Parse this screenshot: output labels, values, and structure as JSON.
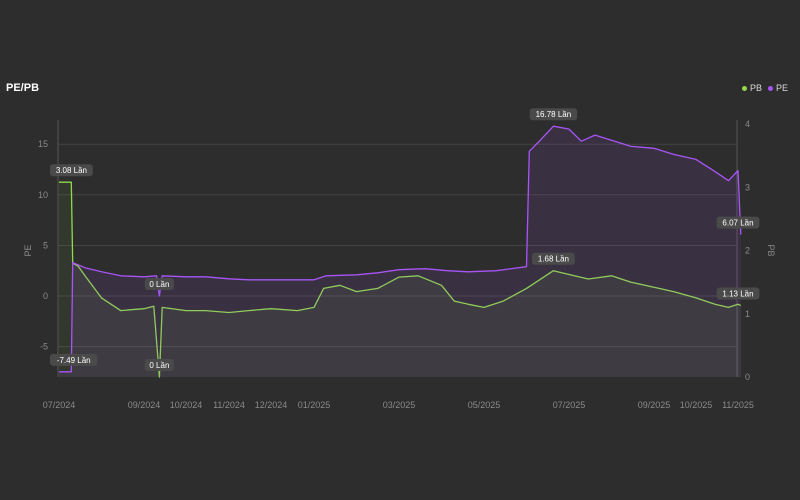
{
  "header": {
    "title": "PE/PB"
  },
  "chart_data": {
    "type": "line",
    "title": "PE/PB",
    "legend": {
      "placement": "top-right",
      "items": [
        {
          "name": "PB",
          "color": "#8fd94a"
        },
        {
          "name": "PE",
          "color": "#a855f7"
        }
      ]
    },
    "y_left": {
      "label": "PE",
      "min": -8,
      "max": 17,
      "ticks": [
        -5,
        0,
        5,
        10,
        15
      ]
    },
    "y_right": {
      "label": "PB",
      "min": 0,
      "max": 4,
      "ticks": [
        0,
        1,
        2,
        3,
        4
      ]
    },
    "x_ticks": [
      "07/2024",
      "09/2024",
      "10/2024",
      "11/2024",
      "12/2024",
      "01/2025",
      "03/2025",
      "05/2025",
      "07/2025",
      "09/2025",
      "10/2025",
      "11/2025"
    ],
    "x_range": [
      "2024-07",
      "2025-11"
    ],
    "grid": true,
    "series": [
      {
        "name": "PE",
        "axis": "left",
        "color": "#a855f7",
        "points": [
          [
            "2024-07-01",
            -7.49
          ],
          [
            "2024-07-10",
            -7.49
          ],
          [
            "2024-07-11",
            3.3
          ],
          [
            "2024-07-20",
            2.8
          ],
          [
            "2024-08-01",
            2.4
          ],
          [
            "2024-08-15",
            2.0
          ],
          [
            "2024-09-01",
            1.9
          ],
          [
            "2024-09-10",
            2.0
          ],
          [
            "2024-09-12",
            0.0
          ],
          [
            "2024-09-14",
            2.0
          ],
          [
            "2024-10-01",
            1.9
          ],
          [
            "2024-10-15",
            1.9
          ],
          [
            "2024-11-01",
            1.7
          ],
          [
            "2024-11-15",
            1.6
          ],
          [
            "2024-12-01",
            1.6
          ],
          [
            "2024-12-20",
            1.6
          ],
          [
            "2025-01-01",
            1.6
          ],
          [
            "2025-01-10",
            2.0
          ],
          [
            "2025-02-01",
            2.1
          ],
          [
            "2025-02-15",
            2.3
          ],
          [
            "2025-03-01",
            2.6
          ],
          [
            "2025-03-20",
            2.7
          ],
          [
            "2025-04-05",
            2.5
          ],
          [
            "2025-04-20",
            2.4
          ],
          [
            "2025-05-10",
            2.5
          ],
          [
            "2025-06-01",
            2.9
          ],
          [
            "2025-06-03",
            14.3
          ],
          [
            "2025-06-10",
            15.3
          ],
          [
            "2025-06-20",
            16.78
          ],
          [
            "2025-07-01",
            16.5
          ],
          [
            "2025-07-10",
            15.3
          ],
          [
            "2025-07-20",
            15.9
          ],
          [
            "2025-08-01",
            15.4
          ],
          [
            "2025-08-15",
            14.8
          ],
          [
            "2025-09-01",
            14.6
          ],
          [
            "2025-09-15",
            14.0
          ],
          [
            "2025-10-01",
            13.5
          ],
          [
            "2025-10-15",
            12.3
          ],
          [
            "2025-10-25",
            11.4
          ],
          [
            "2025-11-01",
            12.4
          ],
          [
            "2025-11-03",
            6.07
          ]
        ]
      },
      {
        "name": "PB",
        "axis": "right",
        "color": "#8fd94a",
        "points": [
          [
            "2024-07-01",
            3.08
          ],
          [
            "2024-07-10",
            3.08
          ],
          [
            "2024-07-11",
            1.8
          ],
          [
            "2024-07-15",
            1.75
          ],
          [
            "2024-07-20",
            1.6
          ],
          [
            "2024-08-01",
            1.25
          ],
          [
            "2024-08-15",
            1.05
          ],
          [
            "2024-09-01",
            1.08
          ],
          [
            "2024-09-08",
            1.12
          ],
          [
            "2024-09-12",
            0.0
          ],
          [
            "2024-09-14",
            1.1
          ],
          [
            "2024-10-01",
            1.05
          ],
          [
            "2024-10-15",
            1.05
          ],
          [
            "2024-11-01",
            1.02
          ],
          [
            "2024-11-15",
            1.05
          ],
          [
            "2024-12-01",
            1.08
          ],
          [
            "2024-12-20",
            1.05
          ],
          [
            "2025-01-01",
            1.1
          ],
          [
            "2025-01-08",
            1.4
          ],
          [
            "2025-01-20",
            1.45
          ],
          [
            "2025-02-01",
            1.35
          ],
          [
            "2025-02-15",
            1.4
          ],
          [
            "2025-03-01",
            1.58
          ],
          [
            "2025-03-15",
            1.6
          ],
          [
            "2025-04-01",
            1.45
          ],
          [
            "2025-04-10",
            1.2
          ],
          [
            "2025-04-20",
            1.15
          ],
          [
            "2025-05-01",
            1.1
          ],
          [
            "2025-05-15",
            1.2
          ],
          [
            "2025-06-01",
            1.4
          ],
          [
            "2025-06-20",
            1.68
          ],
          [
            "2025-07-01",
            1.62
          ],
          [
            "2025-07-15",
            1.55
          ],
          [
            "2025-08-01",
            1.6
          ],
          [
            "2025-08-15",
            1.5
          ],
          [
            "2025-09-01",
            1.42
          ],
          [
            "2025-09-15",
            1.35
          ],
          [
            "2025-10-01",
            1.25
          ],
          [
            "2025-10-15",
            1.15
          ],
          [
            "2025-10-25",
            1.1
          ],
          [
            "2025-11-01",
            1.15
          ],
          [
            "2025-11-03",
            1.13
          ]
        ]
      }
    ],
    "data_labels": [
      {
        "series": "PB",
        "date": "2024-07-05",
        "value": 3.08,
        "text": "3.08 Lần"
      },
      {
        "series": "PE",
        "date": "2024-07-05",
        "value": -7.49,
        "text": "-7.49 Lần"
      },
      {
        "series": "PE",
        "date": "2024-09-12",
        "value": 0,
        "text": "0 Lần"
      },
      {
        "series": "PB",
        "date": "2024-09-12",
        "value": 0,
        "text": "0 Lần"
      },
      {
        "series": "PE",
        "date": "2025-06-20",
        "value": 16.78,
        "text": "16.78 Lần"
      },
      {
        "series": "PB",
        "date": "2025-06-20",
        "value": 1.68,
        "text": "1.68 Lần"
      },
      {
        "series": "PE",
        "date": "2025-11-01",
        "value": 6.07,
        "text": "6.07 Lần"
      },
      {
        "series": "PB",
        "date": "2025-11-01",
        "value": 1.13,
        "text": "1.13 Lần"
      }
    ]
  }
}
